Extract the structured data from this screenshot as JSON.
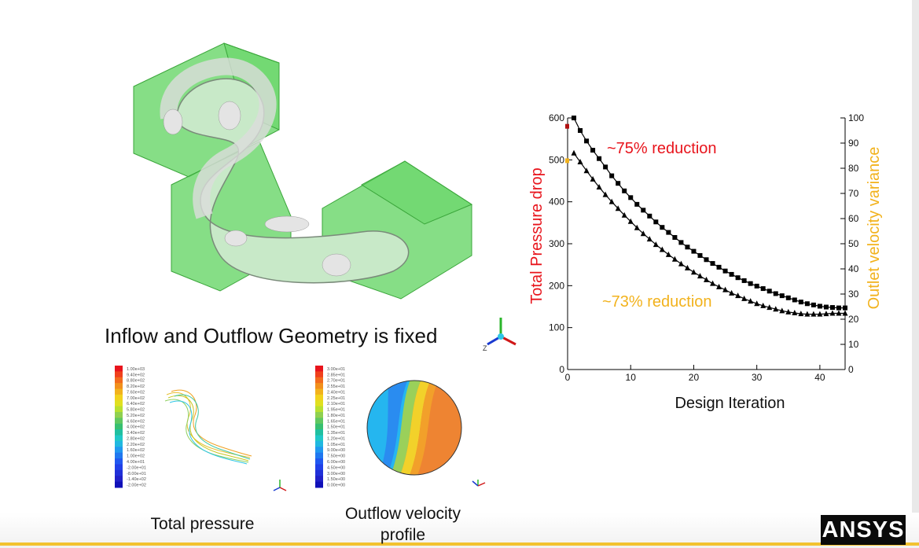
{
  "slide": {
    "caption": "Inflow and Outflow Geometry is fixed",
    "total_pressure_label": "Total pressure",
    "outflow_label_line1": "Outflow velocity",
    "outflow_label_line2": "profile",
    "logo_text": "ANSYS"
  },
  "legend_pressure": [
    "1.00e+03",
    "9.40e+02",
    "8.80e+02",
    "8.20e+02",
    "7.60e+02",
    "7.00e+02",
    "6.40e+02",
    "5.80e+02",
    "5.20e+02",
    "4.60e+02",
    "4.00e+02",
    "3.40e+02",
    "2.80e+02",
    "2.20e+02",
    "1.60e+02",
    "1.00e+02",
    "4.00e+01",
    "-2.00e+01",
    "-8.00e+01",
    "-1.40e+02",
    "-2.00e+02"
  ],
  "legend_velocity": [
    "3.00e+01",
    "2.85e+01",
    "2.70e+01",
    "2.55e+01",
    "2.40e+01",
    "2.25e+01",
    "2.10e+01",
    "1.95e+01",
    "1.80e+01",
    "1.65e+01",
    "1.50e+01",
    "1.35e+01",
    "1.20e+01",
    "1.05e+01",
    "9.00e+00",
    "7.50e+00",
    "6.00e+00",
    "4.50e+00",
    "3.00e+00",
    "1.50e+00",
    "0.00e+00"
  ],
  "colors": {
    "pressure_axis": "#e8141c",
    "variance_axis": "#f2b21c",
    "accent_bar": "#f2c230",
    "geometry_green": "#5dd35d"
  },
  "chart_data": {
    "type": "line",
    "xlabel": "Design Iteration",
    "ylabel": "Total Pressure drop",
    "y2label": "Outlet velocity variance",
    "xlim": [
      0,
      44
    ],
    "ylim": [
      0,
      600
    ],
    "y2lim": [
      0,
      100
    ],
    "xticks": [
      0,
      10,
      20,
      30,
      40
    ],
    "yticks": [
      0,
      100,
      200,
      300,
      400,
      500,
      600
    ],
    "y2ticks": [
      0,
      10,
      20,
      30,
      40,
      50,
      60,
      70,
      80,
      90,
      100
    ],
    "annotations": [
      {
        "text": "~75% reduction",
        "color": "#e8141c"
      },
      {
        "text": "~73% reduction",
        "color": "#f2b21c"
      }
    ],
    "series": [
      {
        "marker": "square",
        "axis": "left",
        "x": [
          1,
          2,
          3,
          4,
          5,
          6,
          7,
          8,
          9,
          10,
          11,
          12,
          13,
          14,
          15,
          16,
          17,
          18,
          19,
          20,
          21,
          22,
          23,
          24,
          25,
          26,
          27,
          28,
          29,
          30,
          31,
          32,
          33,
          34,
          35,
          36,
          37,
          38,
          39,
          40,
          41,
          42,
          43,
          44
        ],
        "values": [
          600,
          570,
          545,
          523,
          503,
          483,
          462,
          444,
          426,
          410,
          394,
          380,
          366,
          352,
          339,
          327,
          315,
          303,
          292,
          282,
          272,
          262,
          253,
          244,
          235,
          227,
          219,
          212,
          205,
          199,
          193,
          187,
          181,
          176,
          171,
          166,
          161,
          157,
          154,
          151,
          149,
          148,
          147,
          147
        ]
      },
      {
        "marker": "triangle",
        "axis": "left",
        "x": [
          1,
          2,
          3,
          4,
          5,
          6,
          7,
          8,
          9,
          10,
          11,
          12,
          13,
          14,
          15,
          16,
          17,
          18,
          19,
          20,
          21,
          22,
          23,
          24,
          25,
          26,
          27,
          28,
          29,
          30,
          31,
          32,
          33,
          34,
          35,
          36,
          37,
          38,
          39,
          40,
          41,
          42,
          43,
          44
        ],
        "values": [
          516,
          495,
          474,
          454,
          435,
          417,
          400,
          384,
          368,
          353,
          338,
          324,
          311,
          298,
          286,
          274,
          263,
          252,
          242,
          232,
          223,
          214,
          205,
          197,
          190,
          182,
          176,
          169,
          163,
          157,
          152,
          148,
          144,
          140,
          137,
          135,
          133,
          132,
          132,
          132,
          133,
          134,
          134,
          134
        ]
      }
    ],
    "start_markers": [
      {
        "axis": "left",
        "value": 580,
        "color": "#b01010"
      },
      {
        "axis": "left",
        "value": 498,
        "color": "#f2b21c"
      }
    ]
  }
}
